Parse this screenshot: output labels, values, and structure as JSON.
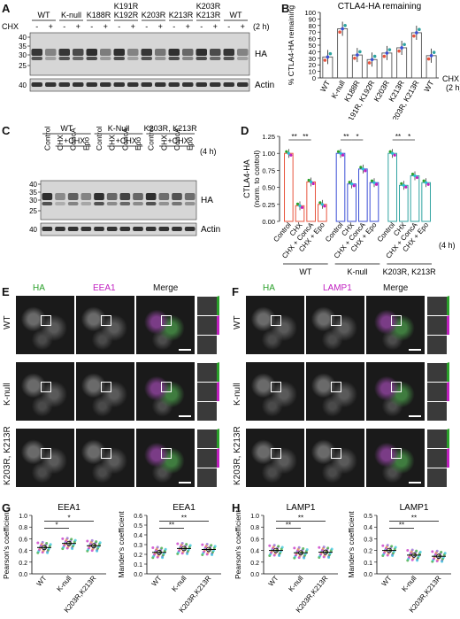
{
  "panels": {
    "A": {
      "letter": "A",
      "lanes": [
        "WT",
        "K-null",
        "K188R",
        "K191R K192R",
        "K203R",
        "K213R",
        "K203R K213R",
        "WT"
      ],
      "cycles": [
        "-",
        "+",
        "-",
        "+",
        "-",
        "+",
        "-",
        "+",
        "-",
        "+",
        "-",
        "+",
        "-",
        "+",
        "-",
        "+"
      ],
      "treat": "CHX",
      "time": "(2 h)",
      "ladder": [
        "40",
        "35",
        "30",
        "25"
      ],
      "actin_ladder": "40",
      "band_labels": [
        "HA",
        "Actin"
      ]
    },
    "B": {
      "letter": "B"
    },
    "C": {
      "letter": "C",
      "groups": [
        "WT",
        "K-Null",
        "K203R, K213R"
      ],
      "sub": [
        "+CHX",
        "+CHX",
        "+CHX"
      ],
      "lanes": [
        "Control",
        "CHX",
        "ConcA",
        "Epo",
        "Control",
        "CHX",
        "ConcA",
        "Epo",
        "Control",
        "CHX",
        "ConcA",
        "Epo"
      ],
      "time": "(4 h)",
      "ladder": [
        "40",
        "35",
        "30",
        "25"
      ],
      "actin_ladder": "40",
      "band_labels": [
        "HA",
        "Actin"
      ]
    },
    "D": {
      "letter": "D"
    },
    "E": {
      "letter": "E",
      "cols": [
        "HA",
        "EEA1",
        "Merge"
      ],
      "rows": [
        "WT",
        "K-null",
        "K203R, K213R"
      ]
    },
    "F": {
      "letter": "F",
      "cols": [
        "HA",
        "LAMP1",
        "Merge"
      ],
      "rows": [
        "WT",
        "K-null",
        "K203R, K213R"
      ]
    },
    "G": {
      "letter": "G"
    },
    "H": {
      "letter": "H"
    }
  },
  "colors": {
    "wt": "#e8553f",
    "knull": "#3b4fd6",
    "kk": "#2fa3a0",
    "gray": "#9a9a9a",
    "green": "#2aa02a",
    "magenta": "#c020c0",
    "cyan": "#27c0d8"
  },
  "chart_data": [
    {
      "id": "B",
      "type": "bar",
      "title": "CTLA4-HA remaining",
      "ylabel": "% CTLA4-HA remaining",
      "categories": [
        "WT",
        "K-null",
        "K188R",
        "K191R, K192R",
        "K203R",
        "K213R",
        "K203R, K213R",
        "WT"
      ],
      "values": [
        32,
        75,
        35,
        28,
        38,
        46,
        69,
        34
      ],
      "ylim": [
        0,
        100
      ],
      "yticks": [
        0,
        10,
        20,
        30,
        40,
        50,
        60,
        70,
        80,
        90,
        100
      ],
      "xlabel": "CHX (2 h)"
    },
    {
      "id": "D",
      "type": "bar",
      "ylabel": "CTLA4-HA (norm. to control)",
      "groups": [
        "WT",
        "K-null",
        "K203R, K213R"
      ],
      "categories": [
        "Control",
        "CHX",
        "CHX + ConcA",
        "CHX + Epo"
      ],
      "series": [
        {
          "name": "WT",
          "values": [
            1.0,
            0.23,
            0.58,
            0.25
          ]
        },
        {
          "name": "K-null",
          "values": [
            1.0,
            0.55,
            0.77,
            0.57
          ]
        },
        {
          "name": "K203R, K213R",
          "values": [
            1.0,
            0.53,
            0.67,
            0.57
          ]
        }
      ],
      "ylim": [
        0,
        1.25
      ],
      "yticks": [
        0,
        0.25,
        0.5,
        0.75,
        1.0,
        1.25
      ],
      "time": "(4 h)",
      "sig": [
        "**",
        "**",
        "**",
        "*",
        "**",
        "*"
      ]
    },
    {
      "id": "G1",
      "type": "scatter",
      "title": "EEA1",
      "ylabel": "Pearson's coefficient",
      "categories": [
        "WT",
        "K-null",
        "K203R,K213R"
      ],
      "means": [
        0.45,
        0.52,
        0.48
      ],
      "ylim": [
        0,
        1.0
      ],
      "yticks": [
        0,
        0.2,
        0.4,
        0.6,
        0.8,
        1.0
      ],
      "sig": [
        "*",
        "*"
      ]
    },
    {
      "id": "G2",
      "type": "scatter",
      "title": "EEA1",
      "ylabel": "Mander's coefficient",
      "categories": [
        "WT",
        "K-null",
        "K203R,K213R"
      ],
      "means": [
        0.22,
        0.26,
        0.25
      ],
      "ylim": [
        0,
        0.6
      ],
      "yticks": [
        0,
        0.1,
        0.2,
        0.3,
        0.4,
        0.5,
        0.6
      ],
      "sig": [
        "**",
        "**"
      ]
    },
    {
      "id": "H1",
      "type": "scatter",
      "title": "LAMP1",
      "ylabel": "Pearson's coefficient",
      "categories": [
        "WT",
        "K-null",
        "K203R,K213R"
      ],
      "means": [
        0.4,
        0.36,
        0.37
      ],
      "ylim": [
        0,
        1.0
      ],
      "yticks": [
        0,
        0.2,
        0.4,
        0.6,
        0.8,
        1.0
      ],
      "sig": [
        "**",
        "**"
      ]
    },
    {
      "id": "H2",
      "type": "scatter",
      "title": "LAMP1",
      "ylabel": "Mander's coefficient",
      "categories": [
        "WT",
        "K-null",
        "K203R,K213R"
      ],
      "means": [
        0.2,
        0.16,
        0.15
      ],
      "ylim": [
        0,
        0.5
      ],
      "yticks": [
        0,
        0.1,
        0.2,
        0.3,
        0.4,
        0.5
      ],
      "sig": [
        "**",
        "**"
      ]
    }
  ]
}
